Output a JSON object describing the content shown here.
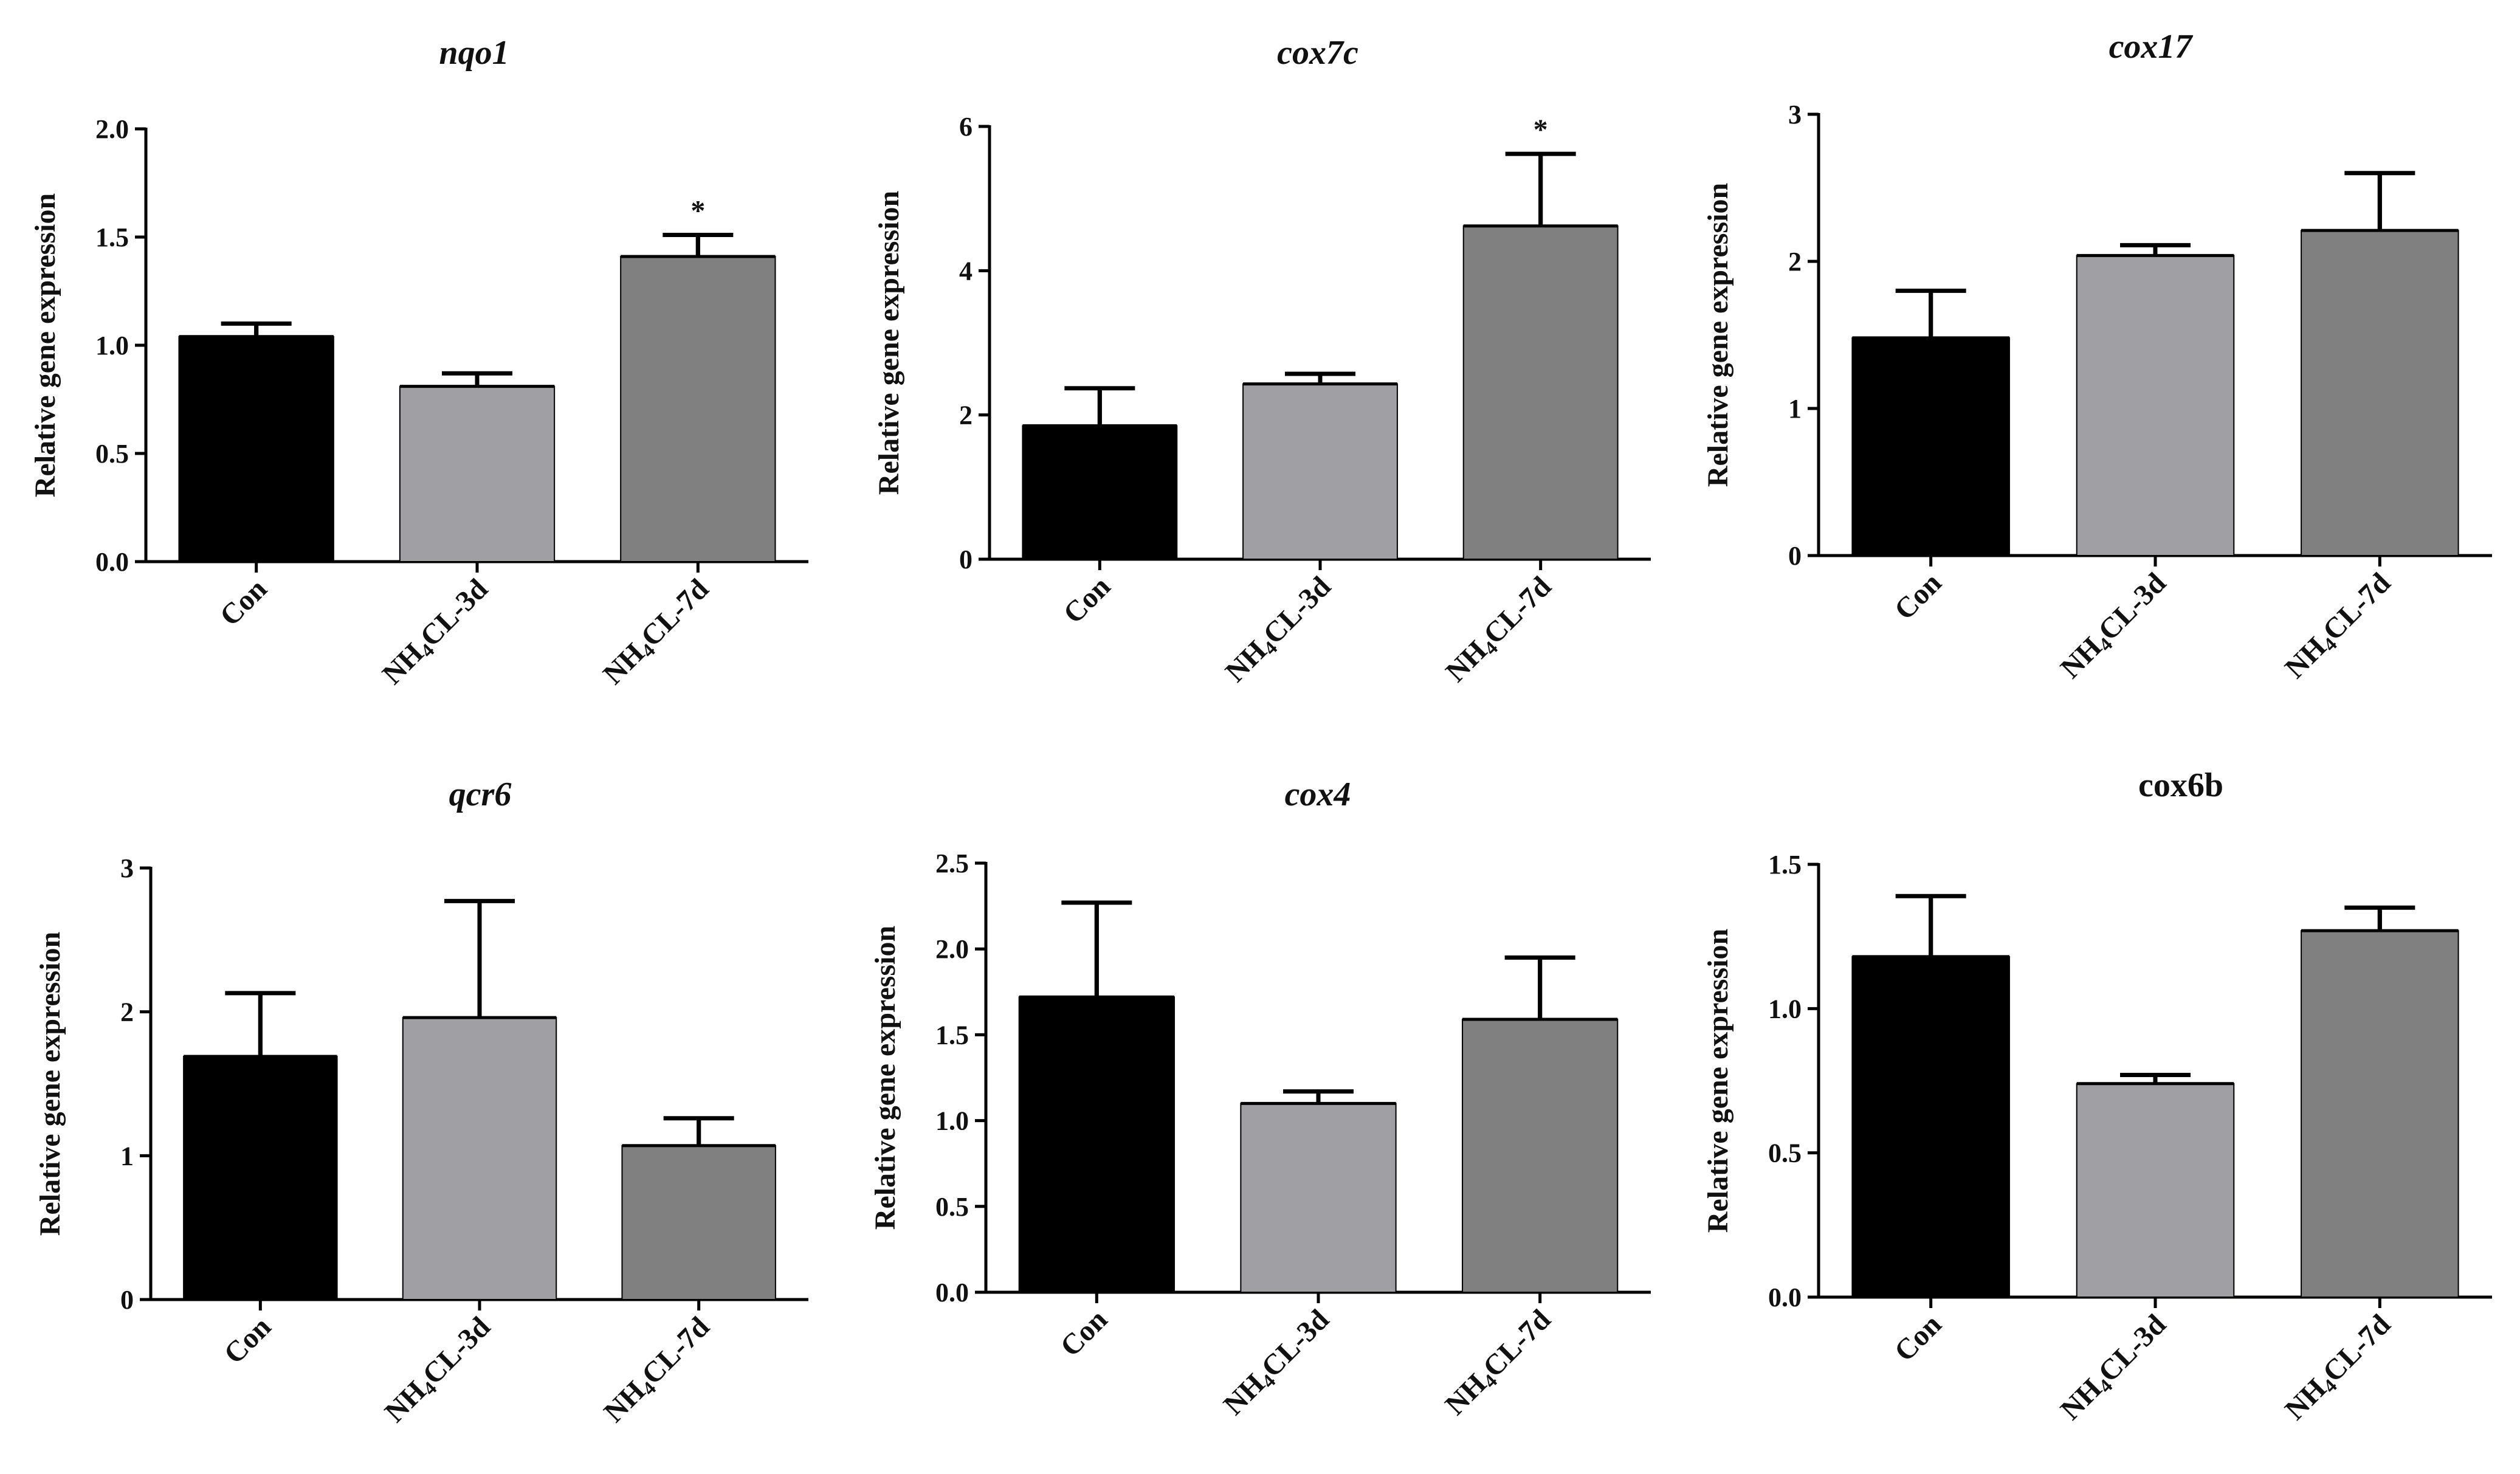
{
  "chart_data": [
    {
      "type": "bar",
      "title": "nqo1",
      "title_italic": true,
      "ylabel": "Relative gene expression",
      "categories": [
        "Con",
        "NH4CL-3d",
        "NH4CL-7d"
      ],
      "values": [
        1.04,
        0.81,
        1.41
      ],
      "errors": [
        0.06,
        0.06,
        0.1
      ],
      "annotations": [
        "",
        "",
        "*"
      ],
      "ylim": [
        0,
        2.0
      ],
      "yticks": [
        "0.0",
        "0.5",
        "1.0",
        "1.5",
        "2.0"
      ],
      "colors": [
        "#000000",
        "#a0a0a4",
        "#808080"
      ]
    },
    {
      "type": "bar",
      "title": "cox7c",
      "title_italic": true,
      "ylabel": "Relative gene expression",
      "categories": [
        "Con",
        "NH4CL-3d",
        "NH4CL-7d"
      ],
      "values": [
        1.85,
        2.43,
        4.62
      ],
      "errors": [
        0.52,
        0.14,
        1.0
      ],
      "annotations": [
        "",
        "",
        "*"
      ],
      "ylim": [
        0,
        6
      ],
      "yticks": [
        "0",
        "2",
        "4",
        "6"
      ],
      "colors": [
        "#000000",
        "#a0a0a4",
        "#808080"
      ]
    },
    {
      "type": "bar",
      "title": "cox17",
      "title_italic": true,
      "ylabel": "Relative gene expression",
      "categories": [
        "Con",
        "NH4CL-3d",
        "NH4CL-7d"
      ],
      "values": [
        1.48,
        2.04,
        2.21
      ],
      "errors": [
        0.32,
        0.07,
        0.39
      ],
      "annotations": [
        "",
        "",
        ""
      ],
      "ylim": [
        0,
        3
      ],
      "yticks": [
        "0",
        "1",
        "2",
        "3"
      ],
      "colors": [
        "#000000",
        "#a0a0a4",
        "#808080"
      ]
    },
    {
      "type": "bar",
      "title": "qcr6",
      "title_italic": true,
      "ylabel": "Relative gene expression",
      "categories": [
        "Con",
        "NH4CL-3d",
        "NH4CL-7d"
      ],
      "values": [
        1.69,
        1.96,
        1.07
      ],
      "errors": [
        0.44,
        0.81,
        0.19
      ],
      "annotations": [
        "",
        "",
        ""
      ],
      "ylim": [
        0,
        3
      ],
      "yticks": [
        "0",
        "1",
        "2",
        "3"
      ],
      "colors": [
        "#000000",
        "#a0a0a4",
        "#808080"
      ]
    },
    {
      "type": "bar",
      "title": "cox4",
      "title_italic": true,
      "ylabel": "Relative gene expression",
      "categories": [
        "Con",
        "NH4CL-3d",
        "NH4CL-7d"
      ],
      "values": [
        1.72,
        1.1,
        1.59
      ],
      "errors": [
        0.55,
        0.07,
        0.36
      ],
      "annotations": [
        "",
        "",
        ""
      ],
      "ylim": [
        0,
        2.5
      ],
      "yticks": [
        "0.0",
        "0.5",
        "1.0",
        "1.5",
        "2.0",
        "2.5"
      ],
      "colors": [
        "#000000",
        "#a0a0a4",
        "#808080"
      ]
    },
    {
      "type": "bar",
      "title": "cox6b",
      "title_italic": false,
      "ylabel": "Relative gene expression",
      "categories": [
        "Con",
        "NH4CL-3d",
        "NH4CL-7d"
      ],
      "values": [
        1.18,
        0.74,
        1.27
      ],
      "errors": [
        0.21,
        0.03,
        0.08
      ],
      "annotations": [
        "",
        "",
        ""
      ],
      "ylim": [
        0,
        1.5
      ],
      "yticks": [
        "0.0",
        "0.5",
        "1.0",
        "1.5"
      ],
      "colors": [
        "#000000",
        "#a0a0a4",
        "#808080"
      ]
    }
  ]
}
